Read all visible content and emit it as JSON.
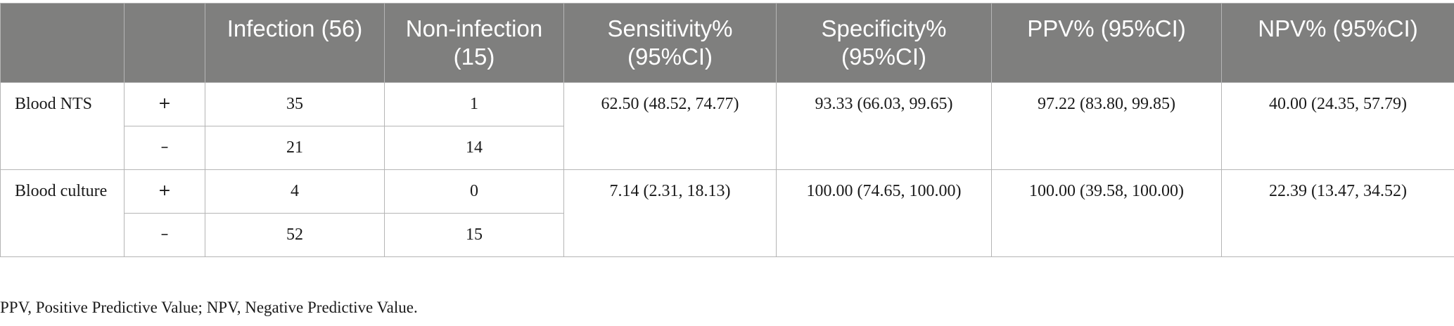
{
  "table": {
    "headers": {
      "corner": "",
      "sign": "",
      "infection": "Infection (56)",
      "non_infection": "Non-infection (15)",
      "sensitivity": "Sensitivity% (95%CI)",
      "specificity": "Specificity% (95%CI)",
      "ppv": "PPV% (95%CI)",
      "npv": "NPV% (95%CI)"
    },
    "groups": [
      {
        "label": "Blood NTS",
        "rows": [
          {
            "sign": "+",
            "infection": "35",
            "non_infection": "1"
          },
          {
            "sign": "–",
            "infection": "21",
            "non_infection": "14"
          }
        ],
        "sensitivity": "62.50 (48.52, 74.77)",
        "specificity": "93.33 (66.03, 99.65)",
        "ppv": "97.22 (83.80, 99.85)",
        "npv": "40.00 (24.35, 57.79)"
      },
      {
        "label": "Blood culture",
        "rows": [
          {
            "sign": "+",
            "infection": "4",
            "non_infection": "0"
          },
          {
            "sign": "–",
            "infection": "52",
            "non_infection": "15"
          }
        ],
        "sensitivity": "7.14 (2.31, 18.13)",
        "specificity": "100.00 (74.65, 100.00)",
        "ppv": "100.00 (39.58, 100.00)",
        "npv": "22.39 (13.47, 34.52)"
      }
    ]
  },
  "footnote": "PPV, Positive Predictive Value; NPV, Negative Predictive Value."
}
